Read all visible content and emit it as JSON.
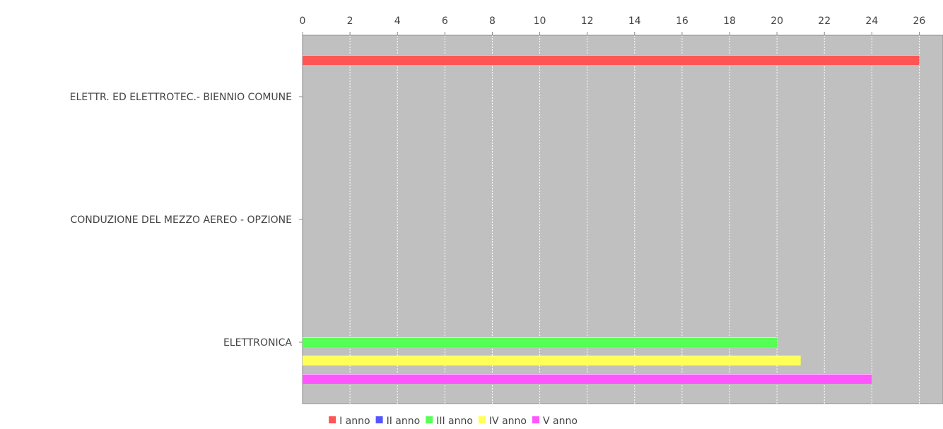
{
  "chart_data": {
    "type": "bar",
    "orientation": "horizontal",
    "title": "",
    "xlabel": "",
    "ylabel": "",
    "xlim": [
      0,
      27
    ],
    "xticks": [
      0,
      2,
      4,
      6,
      8,
      10,
      12,
      14,
      16,
      18,
      20,
      22,
      24,
      26
    ],
    "axis_position": "top",
    "grid": true,
    "legend_position": "bottom",
    "plot_background": "#c0c0c0",
    "categories": [
      "ELETTR. ED ELETTROTEC.- BIENNIO COMUNE",
      "CONDUZIONE DEL MEZZO AEREO - OPZIONE",
      "ELETTRONICA"
    ],
    "series": [
      {
        "name": "I anno",
        "color": "#ff5555",
        "values": [
          26,
          null,
          null
        ]
      },
      {
        "name": "II anno",
        "color": "#5555ff",
        "values": [
          null,
          null,
          null
        ]
      },
      {
        "name": "III anno",
        "color": "#55ff55",
        "values": [
          null,
          null,
          20
        ]
      },
      {
        "name": "IV anno",
        "color": "#ffff55",
        "values": [
          null,
          null,
          21
        ]
      },
      {
        "name": "V anno",
        "color": "#ff55ff",
        "values": [
          null,
          null,
          24
        ]
      }
    ]
  }
}
